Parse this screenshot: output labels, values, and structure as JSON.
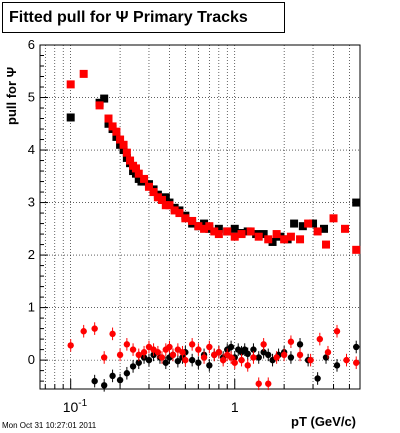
{
  "title": "Fitted pull for  Ψ   Primary Tracks",
  "xlabel": "pT (GeV/c)",
  "ylabel": "pull for Ψ",
  "timestamp": "Mon Oct 31 10:27:01 2011",
  "colors": {
    "series_a": "#000000",
    "series_b": "#ff0000"
  },
  "chart_data": {
    "type": "scatter",
    "title": "Fitted pull for  Ψ   Primary Tracks",
    "xlabel": "pT (GeV/c)",
    "ylabel": "pull for Ψ",
    "xscale": "log",
    "xlim": [
      0.065,
      5.8
    ],
    "ylim": [
      -0.55,
      6.0
    ],
    "grid": true,
    "y_ticks": [
      "0",
      "1",
      "2",
      "3",
      "4",
      "5",
      "6"
    ],
    "x_ticks": [
      "10^-1",
      "1"
    ],
    "series": [
      {
        "color": "#000000",
        "marker": "square",
        "points": [
          [
            0.1,
            4.62
          ],
          [
            0.15,
            4.9
          ],
          [
            0.16,
            4.98
          ],
          [
            0.17,
            4.5
          ],
          [
            0.18,
            4.4
          ],
          [
            0.19,
            4.25
          ],
          [
            0.2,
            4.1
          ],
          [
            0.21,
            4.0
          ],
          [
            0.22,
            3.85
          ],
          [
            0.23,
            3.75
          ],
          [
            0.24,
            3.6
          ],
          [
            0.25,
            3.55
          ],
          [
            0.26,
            3.45
          ],
          [
            0.27,
            3.4
          ],
          [
            0.28,
            3.4
          ],
          [
            0.3,
            3.35
          ],
          [
            0.32,
            3.25
          ],
          [
            0.34,
            3.15
          ],
          [
            0.36,
            3.05
          ],
          [
            0.38,
            3.1
          ],
          [
            0.4,
            3.0
          ],
          [
            0.43,
            2.9
          ],
          [
            0.46,
            2.85
          ],
          [
            0.5,
            2.75
          ],
          [
            0.55,
            2.6
          ],
          [
            0.6,
            2.55
          ],
          [
            0.65,
            2.6
          ],
          [
            0.7,
            2.5
          ],
          [
            0.8,
            2.5
          ],
          [
            0.9,
            2.45
          ],
          [
            1.0,
            2.5
          ],
          [
            1.1,
            2.42
          ],
          [
            1.2,
            2.45
          ],
          [
            1.35,
            2.4
          ],
          [
            1.5,
            2.4
          ],
          [
            1.7,
            2.25
          ],
          [
            1.9,
            2.35
          ],
          [
            2.1,
            2.3
          ],
          [
            2.3,
            2.6
          ],
          [
            2.6,
            2.55
          ],
          [
            3.0,
            2.6
          ],
          [
            3.5,
            2.5
          ],
          [
            5.5,
            3.0
          ]
        ]
      },
      {
        "color": "#ff0000",
        "marker": "square",
        "points": [
          [
            0.1,
            5.25
          ],
          [
            0.12,
            5.45
          ],
          [
            0.15,
            4.85
          ],
          [
            0.17,
            4.6
          ],
          [
            0.18,
            4.45
          ],
          [
            0.19,
            4.35
          ],
          [
            0.2,
            4.2
          ],
          [
            0.21,
            4.1
          ],
          [
            0.22,
            3.95
          ],
          [
            0.23,
            3.8
          ],
          [
            0.24,
            3.7
          ],
          [
            0.25,
            3.65
          ],
          [
            0.26,
            3.55
          ],
          [
            0.28,
            3.45
          ],
          [
            0.3,
            3.3
          ],
          [
            0.32,
            3.2
          ],
          [
            0.34,
            3.1
          ],
          [
            0.36,
            3.05
          ],
          [
            0.38,
            2.95
          ],
          [
            0.4,
            2.95
          ],
          [
            0.43,
            2.85
          ],
          [
            0.46,
            2.8
          ],
          [
            0.5,
            2.7
          ],
          [
            0.55,
            2.65
          ],
          [
            0.6,
            2.55
          ],
          [
            0.65,
            2.5
          ],
          [
            0.7,
            2.55
          ],
          [
            0.75,
            2.45
          ],
          [
            0.8,
            2.4
          ],
          [
            0.9,
            2.45
          ],
          [
            1.0,
            2.35
          ],
          [
            1.1,
            2.4
          ],
          [
            1.25,
            2.45
          ],
          [
            1.4,
            2.35
          ],
          [
            1.6,
            2.3
          ],
          [
            1.8,
            2.4
          ],
          [
            2.0,
            2.3
          ],
          [
            2.2,
            2.35
          ],
          [
            2.5,
            2.3
          ],
          [
            2.8,
            2.6
          ],
          [
            3.2,
            2.45
          ],
          [
            3.6,
            2.2
          ],
          [
            4.0,
            2.7
          ],
          [
            4.7,
            2.5
          ],
          [
            5.5,
            2.1
          ]
        ]
      },
      {
        "color": "#000000",
        "marker": "circle",
        "points": [
          [
            0.14,
            -0.4
          ],
          [
            0.16,
            -0.48
          ],
          [
            0.18,
            -0.3
          ],
          [
            0.2,
            -0.38
          ],
          [
            0.22,
            -0.25
          ],
          [
            0.24,
            -0.12
          ],
          [
            0.26,
            -0.05
          ],
          [
            0.28,
            0.05
          ],
          [
            0.3,
            0.0
          ],
          [
            0.32,
            0.1
          ],
          [
            0.35,
            0.05
          ],
          [
            0.38,
            -0.05
          ],
          [
            0.4,
            0.05
          ],
          [
            0.42,
            0.1
          ],
          [
            0.45,
            -0.02
          ],
          [
            0.48,
            0.05
          ],
          [
            0.5,
            0.15
          ],
          [
            0.55,
            0.0
          ],
          [
            0.6,
            -0.05
          ],
          [
            0.65,
            0.1
          ],
          [
            0.7,
            -0.1
          ],
          [
            0.75,
            0.1
          ],
          [
            0.8,
            0.15
          ],
          [
            0.85,
            0.05
          ],
          [
            0.9,
            0.2
          ],
          [
            0.95,
            0.25
          ],
          [
            1.0,
            0.05
          ],
          [
            1.05,
            0.2
          ],
          [
            1.1,
            0.15
          ],
          [
            1.15,
            0.2
          ],
          [
            1.2,
            0.12
          ],
          [
            1.3,
            0.2
          ],
          [
            1.4,
            0.05
          ],
          [
            1.5,
            0.15
          ],
          [
            1.6,
            0.1
          ],
          [
            1.7,
            0.0
          ],
          [
            1.85,
            0.1
          ],
          [
            2.0,
            0.15
          ],
          [
            2.2,
            0.05
          ],
          [
            2.5,
            0.3
          ],
          [
            2.8,
            0.0
          ],
          [
            3.2,
            -0.35
          ],
          [
            3.6,
            0.05
          ],
          [
            4.2,
            -0.1
          ],
          [
            5.5,
            0.25
          ]
        ]
      },
      {
        "color": "#ff0000",
        "marker": "circle",
        "points": [
          [
            0.1,
            0.28
          ],
          [
            0.12,
            0.55
          ],
          [
            0.14,
            0.6
          ],
          [
            0.16,
            0.05
          ],
          [
            0.18,
            0.5
          ],
          [
            0.2,
            0.1
          ],
          [
            0.22,
            0.3
          ],
          [
            0.24,
            0.2
          ],
          [
            0.26,
            0.1
          ],
          [
            0.28,
            0.15
          ],
          [
            0.3,
            0.25
          ],
          [
            0.32,
            0.2
          ],
          [
            0.34,
            0.15
          ],
          [
            0.36,
            0.05
          ],
          [
            0.38,
            0.2
          ],
          [
            0.4,
            0.25
          ],
          [
            0.42,
            0.1
          ],
          [
            0.45,
            0.2
          ],
          [
            0.48,
            0.15
          ],
          [
            0.5,
            0.0
          ],
          [
            0.55,
            0.3
          ],
          [
            0.6,
            0.2
          ],
          [
            0.65,
            0.05
          ],
          [
            0.7,
            0.25
          ],
          [
            0.75,
            0.1
          ],
          [
            0.8,
            0.15
          ],
          [
            0.85,
            0.0
          ],
          [
            0.9,
            0.1
          ],
          [
            0.95,
            0.05
          ],
          [
            1.0,
            -0.05
          ],
          [
            1.1,
            0.0
          ],
          [
            1.2,
            -0.1
          ],
          [
            1.3,
            0.05
          ],
          [
            1.4,
            -0.45
          ],
          [
            1.5,
            0.3
          ],
          [
            1.6,
            -0.45
          ],
          [
            1.8,
            0.05
          ],
          [
            2.0,
            0.1
          ],
          [
            2.2,
            0.35
          ],
          [
            2.5,
            0.1
          ],
          [
            2.9,
            0.0
          ],
          [
            3.3,
            0.4
          ],
          [
            3.7,
            0.15
          ],
          [
            4.2,
            0.55
          ],
          [
            4.8,
            0.0
          ],
          [
            5.5,
            -0.05
          ]
        ]
      }
    ]
  }
}
